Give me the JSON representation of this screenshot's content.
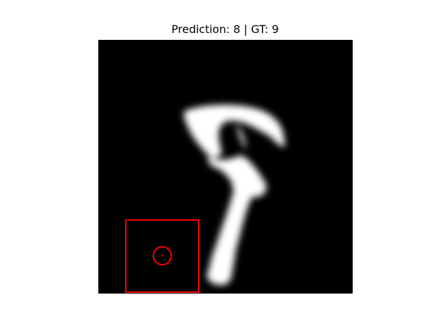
{
  "figure": {
    "title": "Prediction: 8 | GT: 9"
  },
  "image": {
    "description": "MNIST-style white handwritten digit on black background",
    "overlay_color": "#ff0000"
  }
}
